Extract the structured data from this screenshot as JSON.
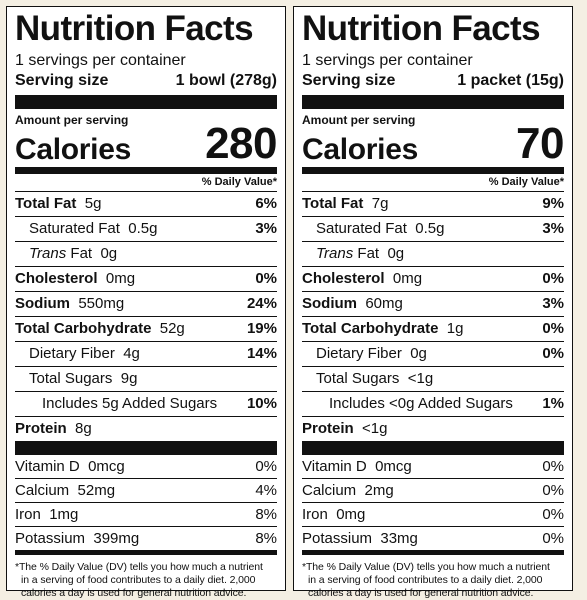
{
  "panels": [
    {
      "title": "Nutrition Facts",
      "servings_per_container": "1 servings per container",
      "serving_size_label": "Serving size",
      "serving_size_value": "1 bowl (278g)",
      "amount_per_serving": "Amount per serving",
      "calories_label": "Calories",
      "calories_value": "280",
      "daily_value_header": "% Daily Value*",
      "total_fat": {
        "label": "Total Fat",
        "amount": "5g",
        "dv": "6%"
      },
      "saturated_fat": {
        "label": "Saturated Fat",
        "amount": "0.5g",
        "dv": "3%"
      },
      "trans_fat": {
        "label_italic": "Trans",
        "label_rest": "Fat",
        "amount": "0g"
      },
      "cholesterol": {
        "label": "Cholesterol",
        "amount": "0mg",
        "dv": "0%"
      },
      "sodium": {
        "label": "Sodium",
        "amount": "550mg",
        "dv": "24%"
      },
      "total_carb": {
        "label": "Total Carbohydrate",
        "amount": "52g",
        "dv": "19%"
      },
      "dietary_fiber": {
        "label": "Dietary Fiber",
        "amount": "4g",
        "dv": "14%"
      },
      "total_sugars": {
        "label": "Total Sugars",
        "amount": "9g"
      },
      "added_sugars": {
        "label": "Includes 5g Added Sugars",
        "dv": "10%"
      },
      "protein": {
        "label": "Protein",
        "amount": "8g"
      },
      "vitamins": [
        {
          "label": "Vitamin D",
          "amount": "0mcg",
          "dv": "0%"
        },
        {
          "label": "Calcium",
          "amount": "52mg",
          "dv": "4%"
        },
        {
          "label": "Iron",
          "amount": "1mg",
          "dv": "8%"
        },
        {
          "label": "Potassium",
          "amount": "399mg",
          "dv": "8%"
        }
      ],
      "footnote_line1": "*The % Daily Value (DV) tells you how much a nutrient",
      "footnote_line2": "in a serving of food contributes to a daily diet. 2,000",
      "footnote_line3": "calories a day is used for general nutrition advice."
    },
    {
      "title": "Nutrition Facts",
      "servings_per_container": "1 servings per container",
      "serving_size_label": "Serving size",
      "serving_size_value": "1 packet (15g)",
      "amount_per_serving": "Amount per serving",
      "calories_label": "Calories",
      "calories_value": "70",
      "daily_value_header": "% Daily Value*",
      "total_fat": {
        "label": "Total Fat",
        "amount": "7g",
        "dv": "9%"
      },
      "saturated_fat": {
        "label": "Saturated Fat",
        "amount": "0.5g",
        "dv": "3%"
      },
      "trans_fat": {
        "label_italic": "Trans",
        "label_rest": "Fat",
        "amount": "0g"
      },
      "cholesterol": {
        "label": "Cholesterol",
        "amount": "0mg",
        "dv": "0%"
      },
      "sodium": {
        "label": "Sodium",
        "amount": "60mg",
        "dv": "3%"
      },
      "total_carb": {
        "label": "Total Carbohydrate",
        "amount": "1g",
        "dv": "0%"
      },
      "dietary_fiber": {
        "label": "Dietary Fiber",
        "amount": "0g",
        "dv": "0%"
      },
      "total_sugars": {
        "label": "Total Sugars",
        "amount": "<1g"
      },
      "added_sugars": {
        "label": "Includes <0g Added Sugars",
        "dv": "1%"
      },
      "protein": {
        "label": "Protein",
        "amount": "<1g"
      },
      "vitamins": [
        {
          "label": "Vitamin D",
          "amount": "0mcg",
          "dv": "0%"
        },
        {
          "label": "Calcium",
          "amount": "2mg",
          "dv": "0%"
        },
        {
          "label": "Iron",
          "amount": "0mg",
          "dv": "0%"
        },
        {
          "label": "Potassium",
          "amount": "33mg",
          "dv": "0%"
        }
      ],
      "footnote_line1": "*The % Daily Value (DV) tells you how much a nutrient",
      "footnote_line2": "in a serving of food contributes to a daily diet. 2,000",
      "footnote_line3": "calories a day is used for general nutrition advice."
    }
  ]
}
